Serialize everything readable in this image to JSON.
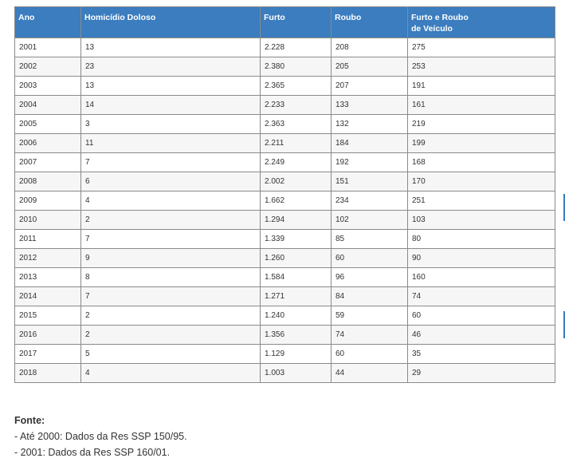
{
  "table": {
    "columns": [
      "Ano",
      "Homicídio Doloso",
      "Furto",
      "Roubo",
      "Furto e Roubo de Veículo"
    ],
    "rows": [
      [
        "2001",
        "13",
        "2.228",
        "208",
        "275"
      ],
      [
        "2002",
        "23",
        "2.380",
        "205",
        "253"
      ],
      [
        "2003",
        "13",
        "2.365",
        "207",
        "191"
      ],
      [
        "2004",
        "14",
        "2.233",
        "133",
        "161"
      ],
      [
        "2005",
        "3",
        "2.363",
        "132",
        "219"
      ],
      [
        "2006",
        "11",
        "2.211",
        "184",
        "199"
      ],
      [
        "2007",
        "7",
        "2.249",
        "192",
        "168"
      ],
      [
        "2008",
        "6",
        "2.002",
        "151",
        "170"
      ],
      [
        "2009",
        "4",
        "1.662",
        "234",
        "251"
      ],
      [
        "2010",
        "2",
        "1.294",
        "102",
        "103"
      ],
      [
        "2011",
        "7",
        "1.339",
        "85",
        "80"
      ],
      [
        "2012",
        "9",
        "1.260",
        "60",
        "90"
      ],
      [
        "2013",
        "8",
        "1.584",
        "96",
        "160"
      ],
      [
        "2014",
        "7",
        "1.271",
        "84",
        "74"
      ],
      [
        "2015",
        "2",
        "1.240",
        "59",
        "60"
      ],
      [
        "2016",
        "2",
        "1.356",
        "74",
        "46"
      ],
      [
        "2017",
        "5",
        "1.129",
        "60",
        "35"
      ],
      [
        "2018",
        "4",
        "1.003",
        "44",
        "29"
      ]
    ]
  },
  "source": {
    "label": "Fonte:",
    "lines": [
      "- Até 2000: Dados da Res SSP 150/95.",
      "- 2001: Dados da Res SSP 160/01."
    ]
  },
  "colors": {
    "header_bg": "#3b7dbf",
    "header_text": "#ffffff",
    "border": "#8a8a8a"
  }
}
